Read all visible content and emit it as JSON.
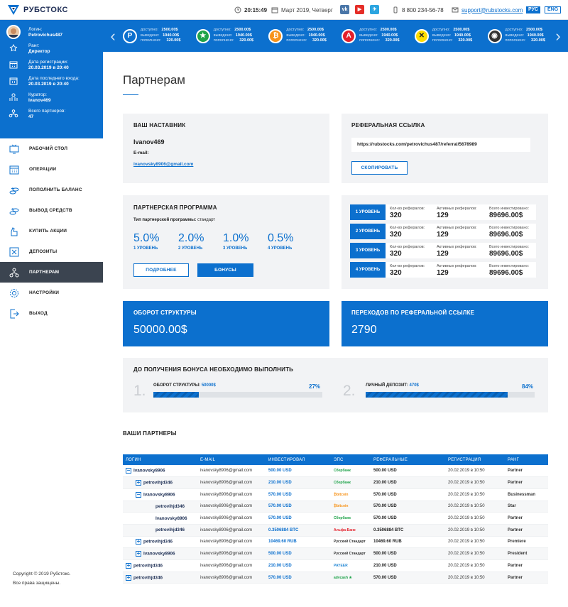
{
  "brand": {
    "name": "РУБСТОКС"
  },
  "topbar": {
    "time": "20:15:49",
    "date": "Март 2019, Четверг",
    "phone": "8 800 234-56-78",
    "email": "support@rubstocks.com",
    "lang_ru": "РУС",
    "lang_en": "ENG",
    "social": [
      {
        "name": "vk",
        "label": "vk",
        "color": "#4a76a8"
      },
      {
        "name": "youtube",
        "label": "▶",
        "color": "#e52d27"
      },
      {
        "name": "telegram",
        "label": "✈",
        "color": "#2ca5e0"
      }
    ]
  },
  "ticker": {
    "labels": {
      "available": "доступно:",
      "withdrawn": "выведено:",
      "deposited": "пополнено:"
    },
    "items": [
      {
        "symbol": "P",
        "color": "#0c70ce",
        "border": "#fff",
        "available": "2500.00$",
        "withdrawn": "1940.00$",
        "deposited": "320.00$"
      },
      {
        "symbol": "★",
        "color": "#1fa34a",
        "border": "#fff",
        "available": "2500.00$",
        "withdrawn": "1940.00$",
        "deposited": "320.00$"
      },
      {
        "symbol": "₿",
        "color": "#f7931a",
        "border": "#fff",
        "available": "2500.00$",
        "withdrawn": "1940.00$",
        "deposited": "320.00$"
      },
      {
        "symbol": "А",
        "color": "#e4202b",
        "border": "#fff",
        "available": "2500.00$",
        "withdrawn": "1940.00$",
        "deposited": "320.00$"
      },
      {
        "symbol": "✕",
        "color": "#ffdd00",
        "border": "#fff",
        "available": "2500.00$",
        "withdrawn": "1940.00$",
        "deposited": "320.00$"
      },
      {
        "symbol": "◉",
        "color": "#333333",
        "border": "#fff",
        "available": "2500.00$",
        "withdrawn": "1940.00$",
        "deposited": "320.00$"
      }
    ]
  },
  "profile": {
    "login_label": "Логин:",
    "login": "Petrovichus487",
    "rank_label": "Ранг:",
    "rank": "Директор",
    "reg_label": "Дата регистрации:",
    "reg": "20.03.2019 в 20:40",
    "last_label": "Дата последнего входа:",
    "last": "20.03.2019 в 20:40",
    "curator_label": "Куратор:",
    "curator": "Ivanov469",
    "partners_label": "Всего партнеров:",
    "partners": "47"
  },
  "menu": [
    {
      "name": "dashboard",
      "label": "РАБОЧИЙ СТОЛ",
      "icon": "tv"
    },
    {
      "name": "operations",
      "label": "ОПЕРАЦИИ",
      "icon": "calendar"
    },
    {
      "name": "deposit",
      "label": "ПОПОЛНИТЬ БАЛАНС",
      "icon": "coins"
    },
    {
      "name": "withdraw",
      "label": "ВЫВОД СРЕДСТВ",
      "icon": "coins"
    },
    {
      "name": "buy-shares",
      "label": "КУПИТЬ АКЦИИ",
      "icon": "hand"
    },
    {
      "name": "deposits",
      "label": "ДЕПОЗИТЫ",
      "icon": "box"
    },
    {
      "name": "partners",
      "label": "ПАРТНЕРАМ",
      "icon": "network",
      "active": true
    },
    {
      "name": "settings",
      "label": "НАСТРОЙКИ",
      "icon": "gear"
    },
    {
      "name": "logout",
      "label": "ВЫХОД",
      "icon": "exit"
    }
  ],
  "footer": {
    "line1": "Copyright © 2019 Рубстокс.",
    "line2": "Все права защищены."
  },
  "page": {
    "title": "Партнерам"
  },
  "mentor": {
    "title": "ВАШ НАСТАВНИК",
    "name": "Ivanov469",
    "email_label": "E-mail:",
    "email": "ivanovsky8906@gmail.com"
  },
  "referral": {
    "title": "РЕФЕРАЛЬНАЯ ССЫЛКА",
    "link": "https://rubstocks.com/petrovichus487/referral/5678989",
    "copy_label": "СКОПИРОВАТЬ"
  },
  "program": {
    "title": "ПАРТНЕРСКАЯ ПРОГРАММА",
    "type_label": "Тип партнерской программы:",
    "type": "стандарт",
    "levels": [
      {
        "pct": "5.0%",
        "label": "1 УРОВЕНЬ"
      },
      {
        "pct": "2.0%",
        "label": "2 УРОВЕНЬ"
      },
      {
        "pct": "1.0%",
        "label": "3 УРОВЕНЬ"
      },
      {
        "pct": "0.5%",
        "label": "4 УРОВЕНЬ"
      }
    ],
    "more_label": "ПОДРОБНЕЕ",
    "bonus_label": "БОНУСЫ"
  },
  "levels_stats": {
    "col1": "Кол-во рефералов:",
    "col2": "Активных рефералов:",
    "col3": "Всего инвестировано:",
    "rows": [
      {
        "level": "1 УРОВЕНЬ",
        "count": "320",
        "active": "129",
        "invested": "89696.00$"
      },
      {
        "level": "2 УРОВЕНЬ",
        "count": "320",
        "active": "129",
        "invested": "89696.00$"
      },
      {
        "level": "3 УРОВЕНЬ",
        "count": "320",
        "active": "129",
        "invested": "89696.00$"
      },
      {
        "level": "4 УРОВЕНЬ",
        "count": "320",
        "active": "129",
        "invested": "89696.00$"
      }
    ]
  },
  "turnover": {
    "title": "ОБОРОТ СТРУКТУРЫ",
    "value": "50000.00$"
  },
  "transitions": {
    "title": "ПЕРЕХОДОВ ПО РЕФЕРАЛЬНОЙ ССЫЛКЕ",
    "value": "2790"
  },
  "bonus": {
    "title": "ДО ПОЛУЧЕНИЯ БОНУСА НЕОБХОДИМО ВЫПОЛНИТЬ",
    "items": [
      {
        "num": "1.",
        "label": "ОБОРОТ СТРУКТУРЫ:",
        "value": "50000$",
        "pct": "27%",
        "fraction": 0.27
      },
      {
        "num": "2.",
        "label": "ЛИЧНЫЙ ДЕПОЗИТ:",
        "value": "470$",
        "pct": "84%",
        "fraction": 0.84
      }
    ]
  },
  "partners": {
    "title": "ВАШИ ПАРТНЕРЫ",
    "columns": [
      "ЛОГИН",
      "E-MAIL",
      "ИНВЕСТИРОВАЛ",
      "ЭПС",
      "РЕФЕРАЛЬНЫЕ",
      "РЕГИСТРАЦИЯ",
      "РАНГ"
    ],
    "rows": [
      {
        "indent": 0,
        "toggle": "−",
        "login": "Ivanovsky8906",
        "email": "ivanovsky8906@gmail.com",
        "invested": "500.00 USD",
        "eps": "Сбербанк",
        "eps_color": "#1fa34a",
        "ref": "500.00 USD",
        "reg": "20.02.2019 в 10:50",
        "rank": "Partner"
      },
      {
        "indent": 1,
        "toggle": "+",
        "login": "petrovihjd346",
        "email": "ivanovsky8906@gmail.com",
        "invested": "210.00 USD",
        "eps": "Сбербанк",
        "eps_color": "#1fa34a",
        "ref": "210.00 USD",
        "reg": "20.02.2019 в 10:50",
        "rank": "Partner"
      },
      {
        "indent": 1,
        "toggle": "−",
        "login": "Ivanovsky8906",
        "email": "ivanovsky8906@gmail.com",
        "invested": "570.00 USD",
        "eps": "₿bitcoin",
        "eps_color": "#f7931a",
        "ref": "570.00 USD",
        "reg": "20.02.2019 в 10:50",
        "rank": "Businessman"
      },
      {
        "indent": 2,
        "toggle": "",
        "login": "petrovihjd346",
        "email": "ivanovsky8906@gmail.com",
        "invested": "570.00 USD",
        "eps": "₿bitcoin",
        "eps_color": "#f7931a",
        "ref": "570.00 USD",
        "reg": "20.02.2019 в 10:50",
        "rank": "Star"
      },
      {
        "indent": 2,
        "toggle": "",
        "login": "Ivanovsky8906",
        "email": "ivanovsky8906@gmail.com",
        "invested": "570.00 USD",
        "eps": "Сбербанк",
        "eps_color": "#1fa34a",
        "ref": "570.00 USD",
        "reg": "20.02.2019 в 10:50",
        "rank": "Partner"
      },
      {
        "indent": 2,
        "toggle": "",
        "login": "petrovihjd346",
        "email": "ivanovsky8906@gmail.com",
        "invested": "0.3506884 BTC",
        "eps": "Альфа-Банк",
        "eps_color": "#e4202b",
        "ref": "0.3506884 BTC",
        "reg": "20.02.2019 в 10:50",
        "rank": "Partner"
      },
      {
        "indent": 1,
        "toggle": "+",
        "login": "petrovihjd346",
        "email": "ivanovsky8906@gmail.com",
        "invested": "10469.60 RUB",
        "eps": "Русский Стандарт",
        "eps_color": "#333333",
        "ref": "10469.60 RUB",
        "reg": "20.02.2019 в 10:50",
        "rank": "Premiere"
      },
      {
        "indent": 1,
        "toggle": "+",
        "login": "Ivanovsky8906",
        "email": "ivanovsky8906@gmail.com",
        "invested": "500.00 USD",
        "eps": "Русский Стандарт",
        "eps_color": "#333333",
        "ref": "500.00 USD",
        "reg": "20.02.2019 в 10:50",
        "rank": "President"
      },
      {
        "indent": 0,
        "toggle": "+",
        "login": "petrovihjd346",
        "email": "ivanovsky8906@gmail.com",
        "invested": "210.00 USD",
        "eps": "PAYEER",
        "eps_color": "#2a8bd6",
        "ref": "210.00 USD",
        "reg": "20.02.2019 в 10:50",
        "rank": "Partner"
      },
      {
        "indent": 0,
        "toggle": "+",
        "login": "petrovihjd346",
        "email": "ivanovsky8906@gmail.com",
        "invested": "570.00 USD",
        "eps": "advcash ★",
        "eps_color": "#1fa34a",
        "ref": "570.00 USD",
        "reg": "20.02.2019 в 10:50",
        "rank": "Partner"
      }
    ]
  }
}
